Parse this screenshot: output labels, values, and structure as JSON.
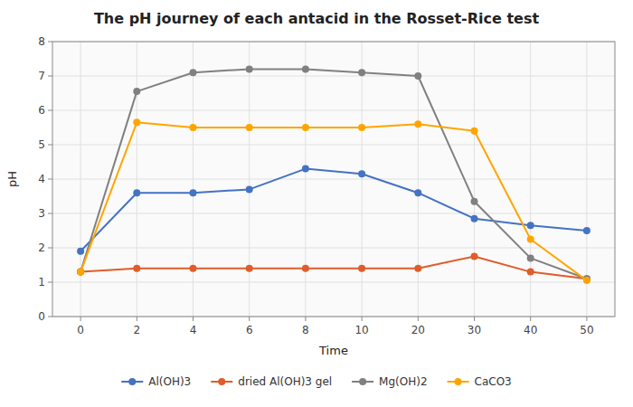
{
  "chart_data": {
    "type": "line",
    "title": "The pH journey of each antacid in the Rosset-Rice test",
    "xlabel": "Time",
    "ylabel": "pH",
    "categories": [
      "0",
      "2",
      "4",
      "6",
      "8",
      "10",
      "20",
      "30",
      "40",
      "50"
    ],
    "series": [
      {
        "name": "Al(OH)3",
        "color": "#4472C4",
        "marker": "circle",
        "values": [
          1.9,
          3.6,
          3.6,
          3.7,
          4.3,
          4.15,
          3.6,
          2.85,
          2.65,
          2.5
        ]
      },
      {
        "name": "dried Al(OH)3 gel",
        "color": "#E05C2A",
        "marker": "circle",
        "values": [
          1.3,
          1.4,
          1.4,
          1.4,
          1.4,
          1.4,
          1.4,
          1.75,
          1.3,
          1.1
        ]
      },
      {
        "name": "Mg(OH)2",
        "color": "#808080",
        "marker": "circle",
        "values": [
          1.3,
          6.55,
          7.1,
          7.2,
          7.2,
          7.1,
          7.0,
          3.35,
          1.7,
          1.1
        ]
      },
      {
        "name": "CaCO3",
        "color": "#FFA500",
        "marker": "circle",
        "values": [
          1.3,
          5.65,
          5.5,
          5.5,
          5.5,
          5.5,
          5.6,
          5.4,
          2.25,
          1.05
        ]
      }
    ],
    "ylim": [
      0,
      8
    ],
    "yticks": [
      0,
      1,
      2,
      3,
      4,
      5,
      6,
      7,
      8
    ],
    "grid": true,
    "legend": "bottom"
  }
}
